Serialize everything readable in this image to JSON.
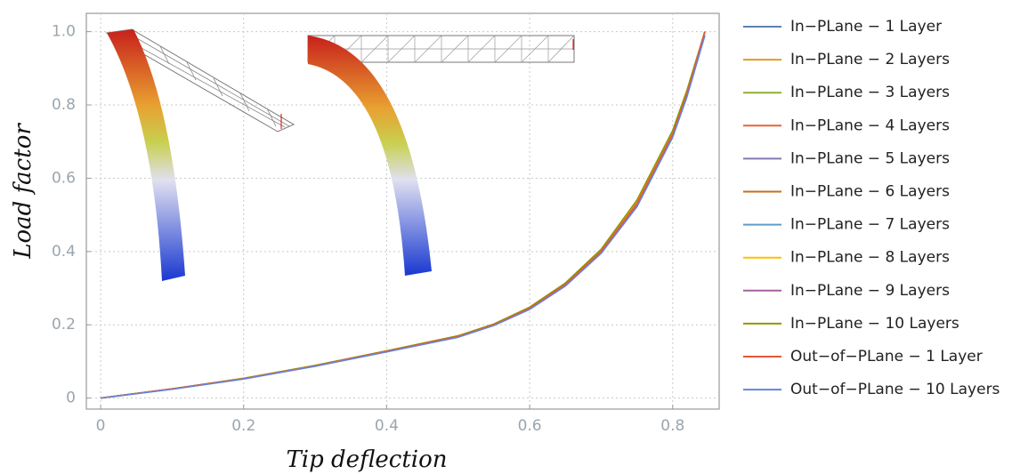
{
  "chart_data": {
    "type": "line",
    "x_label": "Tip deflection",
    "y_label": "Load factor",
    "x": [
      0,
      0.1,
      0.2,
      0.3,
      0.4,
      0.5,
      0.55,
      0.6,
      0.65,
      0.7,
      0.75,
      0.8,
      0.82,
      0.845
    ],
    "series": [
      {
        "name": "In−PLane − 1 Layer",
        "color": "#5e81b5",
        "values": [
          0,
          0.025,
          0.053,
          0.088,
          0.128,
          0.168,
          0.2,
          0.245,
          0.31,
          0.4,
          0.53,
          0.72,
          0.83,
          1.0
        ]
      },
      {
        "name": "In−PLane − 2 Layers",
        "color": "#e19c24",
        "values": [
          0,
          0.025,
          0.053,
          0.088,
          0.128,
          0.169,
          0.201,
          0.246,
          0.312,
          0.403,
          0.535,
          0.725,
          0.835,
          1.0
        ]
      },
      {
        "name": "In−PLane − 3 Layers",
        "color": "#8fb032",
        "values": [
          0,
          0.025,
          0.054,
          0.089,
          0.129,
          0.17,
          0.202,
          0.248,
          0.314,
          0.406,
          0.54,
          0.73,
          0.84,
          1.0
        ]
      },
      {
        "name": "In−PLane − 4 Layers",
        "color": "#eb6235",
        "values": [
          0,
          0.025,
          0.053,
          0.088,
          0.128,
          0.169,
          0.201,
          0.246,
          0.312,
          0.403,
          0.534,
          0.724,
          0.834,
          1.0
        ]
      },
      {
        "name": "In−PLane − 5 Layers",
        "color": "#8778b3",
        "values": [
          0,
          0.025,
          0.053,
          0.087,
          0.127,
          0.167,
          0.199,
          0.244,
          0.308,
          0.397,
          0.525,
          0.715,
          0.825,
          0.99
        ]
      },
      {
        "name": "In−PLane − 6 Layers",
        "color": "#c56e1a",
        "values": [
          0,
          0.025,
          0.053,
          0.088,
          0.128,
          0.168,
          0.2,
          0.245,
          0.31,
          0.4,
          0.53,
          0.72,
          0.83,
          1.0
        ]
      },
      {
        "name": "In−PLane − 7 Layers",
        "color": "#5d9ec7",
        "values": [
          0,
          0.025,
          0.053,
          0.088,
          0.128,
          0.168,
          0.2,
          0.245,
          0.31,
          0.4,
          0.53,
          0.72,
          0.83,
          1.0
        ]
      },
      {
        "name": "In−PLane − 8 Layers",
        "color": "#ffbf00",
        "values": [
          0,
          0.025,
          0.054,
          0.089,
          0.129,
          0.17,
          0.202,
          0.247,
          0.313,
          0.405,
          0.538,
          0.728,
          0.838,
          1.0
        ]
      },
      {
        "name": "In−PLane − 9 Layers",
        "color": "#a5609d",
        "values": [
          0,
          0.025,
          0.053,
          0.088,
          0.128,
          0.168,
          0.2,
          0.245,
          0.31,
          0.4,
          0.53,
          0.72,
          0.83,
          1.0
        ]
      },
      {
        "name": "In−PLane − 10 Layers",
        "color": "#929600",
        "values": [
          0,
          0.025,
          0.054,
          0.089,
          0.129,
          0.17,
          0.202,
          0.248,
          0.314,
          0.406,
          0.54,
          0.73,
          0.84,
          1.0
        ]
      },
      {
        "name": "Out−of−PLane − 1 Layer",
        "color": "#e95536",
        "values": [
          0,
          0.025,
          0.053,
          0.088,
          0.128,
          0.168,
          0.2,
          0.245,
          0.31,
          0.4,
          0.53,
          0.72,
          0.83,
          1.0
        ]
      },
      {
        "name": "Out−of−PLane − 10 Layers",
        "color": "#6685d9",
        "values": [
          0,
          0.024,
          0.052,
          0.087,
          0.126,
          0.166,
          0.198,
          0.242,
          0.306,
          0.395,
          0.522,
          0.712,
          0.822,
          0.99
        ]
      }
    ],
    "xlim": [
      -0.02,
      0.865
    ],
    "ylim": [
      -0.03,
      1.05
    ],
    "xticks": [
      0,
      0.2,
      0.4,
      0.6,
      0.8
    ],
    "yticks": [
      0,
      0.2,
      0.4,
      0.6,
      0.8,
      {
        "value": 1,
        "label": "1.0"
      }
    ],
    "grid": true
  }
}
